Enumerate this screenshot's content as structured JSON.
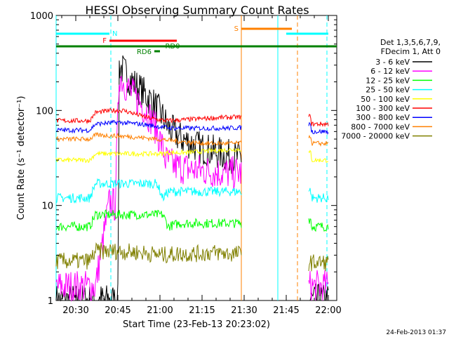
{
  "chart_data": {
    "type": "line",
    "title": "HESSI Observing Summary Count Rates",
    "xlabel": "Start Time (23-Feb-13 20:23:02)",
    "ylabel": "Count Rate (s⁻¹ detector⁻¹)",
    "x_ticks": [
      "20:30",
      "20:45",
      "21:00",
      "21:15",
      "21:30",
      "21:45",
      "22:00"
    ],
    "x_tick_minutes": [
      7,
      22,
      37,
      52,
      67,
      82,
      97
    ],
    "xlim_minutes_after_start": [
      0,
      100
    ],
    "y_scale": "log",
    "ylim": [
      1,
      1000
    ],
    "y_ticks": [
      "1",
      "10",
      "100",
      "1000"
    ],
    "legend_header": [
      "Det 1,3,5,6,7,9,",
      "FDecim 1, Att 0"
    ],
    "legend_position": "right",
    "series": [
      {
        "name": "3 - 6 keV",
        "color": "#000000",
        "points": [
          [
            14,
            1.0
          ],
          [
            18,
            1.0
          ],
          [
            22,
            1.0
          ],
          [
            22.5,
            300
          ],
          [
            24,
            260
          ],
          [
            26,
            220
          ],
          [
            28,
            190
          ],
          [
            30,
            165
          ],
          [
            32,
            145
          ],
          [
            34,
            125
          ],
          [
            36,
            105
          ],
          [
            38,
            85
          ],
          [
            40,
            65
          ],
          [
            44,
            52
          ],
          [
            48,
            45
          ],
          [
            52,
            40
          ],
          [
            56,
            37
          ],
          [
            60,
            34
          ],
          [
            64,
            32
          ],
          [
            66,
            32
          ]
        ]
      },
      {
        "name": "6 - 12 keV",
        "color": "#ff00ff",
        "points": [
          [
            0,
            1.4
          ],
          [
            14,
            1.4
          ],
          [
            19,
            11
          ],
          [
            21,
            10
          ],
          [
            22.5,
            240
          ],
          [
            24,
            200
          ],
          [
            26,
            165
          ],
          [
            28,
            140
          ],
          [
            30,
            120
          ],
          [
            32,
            100
          ],
          [
            34,
            80
          ],
          [
            36,
            60
          ],
          [
            38,
            40
          ],
          [
            39,
            30
          ],
          [
            42,
            26
          ],
          [
            48,
            24
          ],
          [
            54,
            23
          ],
          [
            60,
            22
          ],
          [
            66,
            22
          ]
        ]
      },
      {
        "name": "12 - 25 keV",
        "color": "#00ff00",
        "points": [
          [
            0,
            6
          ],
          [
            12,
            6
          ],
          [
            14,
            8
          ],
          [
            38,
            8
          ],
          [
            40,
            6
          ],
          [
            44,
            6.5
          ],
          [
            50,
            6.5
          ],
          [
            56,
            6.5
          ],
          [
            62,
            6.5
          ],
          [
            66,
            6.5
          ]
        ]
      },
      {
        "name": "25 - 50 keV",
        "color": "#00ffff",
        "points": [
          [
            0,
            12
          ],
          [
            12,
            12
          ],
          [
            14,
            17
          ],
          [
            36,
            17
          ],
          [
            38,
            12
          ],
          [
            40,
            14
          ],
          [
            46,
            14
          ],
          [
            52,
            14
          ],
          [
            58,
            14
          ],
          [
            64,
            14
          ],
          [
            66,
            14
          ]
        ]
      },
      {
        "name": "50 - 100 keV",
        "color": "#ffff00",
        "points": [
          [
            0,
            30
          ],
          [
            12,
            30
          ],
          [
            14,
            35
          ],
          [
            38,
            35
          ],
          [
            40,
            36
          ],
          [
            46,
            36
          ],
          [
            52,
            37
          ],
          [
            58,
            38
          ],
          [
            64,
            39
          ],
          [
            66,
            39
          ]
        ]
      },
      {
        "name": "100 - 300 keV",
        "color": "#ff0000",
        "points": [
          [
            0,
            78
          ],
          [
            12,
            78
          ],
          [
            14,
            95
          ],
          [
            20,
            100
          ],
          [
            24,
            100
          ],
          [
            28,
            92
          ],
          [
            32,
            85
          ],
          [
            36,
            80
          ],
          [
            40,
            78
          ],
          [
            46,
            80
          ],
          [
            52,
            82
          ],
          [
            58,
            84
          ],
          [
            64,
            85
          ],
          [
            66,
            85
          ]
        ]
      },
      {
        "name": "300 - 800 keV",
        "color": "#0000ff",
        "points": [
          [
            0,
            62
          ],
          [
            12,
            62
          ],
          [
            14,
            72
          ],
          [
            22,
            75
          ],
          [
            30,
            72
          ],
          [
            36,
            68
          ],
          [
            42,
            65
          ],
          [
            48,
            65
          ],
          [
            54,
            65
          ],
          [
            60,
            65
          ],
          [
            66,
            66
          ]
        ]
      },
      {
        "name": "800 - 7000 keV",
        "color": "#ff8000",
        "points": [
          [
            0,
            50
          ],
          [
            12,
            50
          ],
          [
            14,
            55
          ],
          [
            22,
            54
          ],
          [
            30,
            52
          ],
          [
            36,
            50
          ],
          [
            42,
            48
          ],
          [
            48,
            46
          ],
          [
            54,
            45
          ],
          [
            60,
            45
          ],
          [
            66,
            45
          ]
        ]
      },
      {
        "name": "7000 - 20000 keV",
        "color": "#808000",
        "points": [
          [
            0,
            2.6
          ],
          [
            12,
            2.6
          ],
          [
            14,
            3.3
          ],
          [
            22,
            3.3
          ],
          [
            30,
            3.2
          ],
          [
            38,
            3.0
          ],
          [
            44,
            3.1
          ],
          [
            50,
            3.1
          ],
          [
            56,
            3.2
          ],
          [
            62,
            3.1
          ],
          [
            66,
            3.1
          ]
        ]
      }
    ],
    "series_after_gap": {
      "x_range": [
        90,
        97
      ],
      "values": [
        {
          "name": "3 - 6 keV",
          "y": 1.0
        },
        {
          "name": "6 - 12 keV",
          "y": 1.4
        },
        {
          "name": "12 - 25 keV",
          "y": 6
        },
        {
          "name": "25 - 50 keV",
          "y": 12
        },
        {
          "name": "50 - 100 keV",
          "y": 30
        },
        {
          "name": "100 - 300 keV",
          "y": 72
        },
        {
          "name": "300 - 800 keV",
          "y": 60
        },
        {
          "name": "800 - 7000 keV",
          "y": 45
        },
        {
          "name": "7000 - 20000 keV",
          "y": 2.5
        }
      ]
    },
    "flag_bars": [
      {
        "label": "N",
        "color": "#00ffff",
        "segments": [
          [
            0,
            19
          ],
          [
            82,
            97
          ]
        ]
      },
      {
        "label": "F",
        "color": "#ff0000",
        "segments": [
          [
            19,
            43
          ]
        ]
      },
      {
        "label": "RD0",
        "color": "#008000",
        "segments": [
          [
            0,
            100
          ]
        ]
      },
      {
        "label": "RD6",
        "color": "#008000",
        "segments": [
          [
            35,
            37
          ]
        ]
      },
      {
        "label": "S",
        "color": "#ff8000",
        "segments": [
          [
            66,
            84
          ]
        ]
      }
    ],
    "vertical_markers": [
      {
        "minutes": 0,
        "color": "#00ffff",
        "style": "solid"
      },
      {
        "minutes": 19.5,
        "color": "#00ffff",
        "style": "dashed"
      },
      {
        "minutes": 66,
        "color": "#ff8000",
        "style": "solid"
      },
      {
        "minutes": 79,
        "color": "#00ffff",
        "style": "solid"
      },
      {
        "minutes": 86,
        "color": "#ff8000",
        "style": "dashed"
      },
      {
        "minutes": 96.5,
        "color": "#00ffff",
        "style": "dashed"
      }
    ]
  },
  "footer_timestamp": "24-Feb-2013 01:37"
}
